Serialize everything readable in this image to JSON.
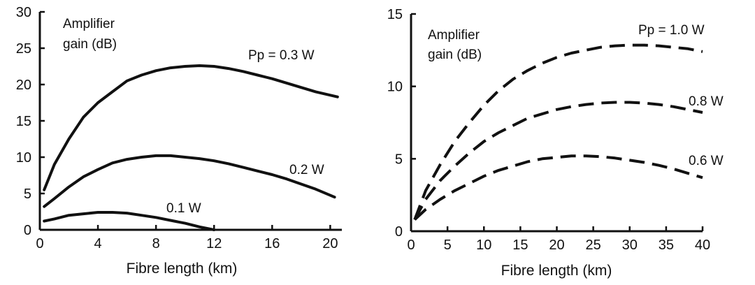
{
  "chart_data": [
    {
      "type": "line",
      "title": "",
      "annotation": "Amplifier gain (dB)",
      "annotation_lines": [
        "Amplifier",
        "gain (dB)"
      ],
      "xlabel": "Fibre length (km)",
      "ylabel": "",
      "xlim": [
        0,
        20.8
      ],
      "ylim": [
        0,
        30
      ],
      "x_ticks": [
        0,
        4,
        8,
        12,
        16,
        20
      ],
      "y_ticks": [
        0,
        5,
        10,
        15,
        20,
        25,
        30
      ],
      "line_style": "solid",
      "series": [
        {
          "name": "Pp = 0.3 W",
          "label": "Pp = 0.3 W",
          "x": [
            0.3,
            1,
            2,
            3,
            4,
            5,
            6,
            7,
            8,
            9,
            10,
            11,
            12,
            13,
            14,
            15,
            16,
            17,
            18,
            19,
            20.5
          ],
          "y": [
            5.5,
            9,
            12.5,
            15.5,
            17.5,
            19,
            20.5,
            21.3,
            21.9,
            22.3,
            22.5,
            22.6,
            22.5,
            22.2,
            21.8,
            21.3,
            20.8,
            20.2,
            19.6,
            19.0,
            18.3
          ]
        },
        {
          "name": "0.2 W",
          "label": "0.2 W",
          "x": [
            0.3,
            1,
            2,
            3,
            4,
            5,
            6,
            7,
            8,
            9,
            10,
            11,
            12,
            13,
            14,
            15,
            16,
            17,
            18,
            19,
            20.3
          ],
          "y": [
            3.2,
            4.3,
            5.9,
            7.3,
            8.3,
            9.2,
            9.7,
            10.0,
            10.2,
            10.2,
            10.0,
            9.8,
            9.5,
            9.1,
            8.6,
            8.1,
            7.6,
            7.0,
            6.3,
            5.6,
            4.5
          ]
        },
        {
          "name": "0.1 W",
          "label": "0.1 W",
          "x": [
            0.3,
            1,
            2,
            3,
            4,
            5,
            6,
            7,
            8,
            9,
            10,
            11,
            12
          ],
          "y": [
            1.2,
            1.5,
            2.0,
            2.2,
            2.4,
            2.4,
            2.3,
            2.0,
            1.7,
            1.3,
            0.9,
            0.4,
            0.0
          ]
        }
      ]
    },
    {
      "type": "line",
      "title": "",
      "annotation": "Amplifier gain (dB)",
      "annotation_lines": [
        "Amplifier",
        "gain (dB)"
      ],
      "xlabel": "Fibre length (km)",
      "ylabel": "",
      "xlim": [
        0,
        40
      ],
      "ylim": [
        0,
        15
      ],
      "x_ticks": [
        0,
        5,
        10,
        15,
        20,
        25,
        30,
        35,
        40
      ],
      "y_ticks": [
        0,
        5,
        10,
        15
      ],
      "line_style": "dashed",
      "series": [
        {
          "name": "Pp = 1.0 W",
          "label": "Pp = 1.0 W",
          "x": [
            0.5,
            2,
            4,
            6,
            8,
            10,
            12,
            14,
            16,
            18,
            20,
            22,
            24,
            26,
            28,
            30,
            32,
            34,
            36,
            38,
            40
          ],
          "y": [
            0.8,
            2.8,
            4.6,
            6.2,
            7.5,
            8.7,
            9.7,
            10.5,
            11.1,
            11.6,
            12.0,
            12.3,
            12.5,
            12.7,
            12.8,
            12.85,
            12.85,
            12.8,
            12.7,
            12.6,
            12.4
          ]
        },
        {
          "name": "0.8 W",
          "label": "0.8 W",
          "x": [
            0.5,
            2,
            4,
            6,
            8,
            10,
            12,
            14,
            16,
            18,
            20,
            22,
            24,
            26,
            28,
            30,
            32,
            34,
            36,
            38,
            40
          ],
          "y": [
            0.8,
            2.2,
            3.5,
            4.5,
            5.4,
            6.2,
            6.8,
            7.3,
            7.8,
            8.1,
            8.4,
            8.6,
            8.75,
            8.85,
            8.9,
            8.9,
            8.85,
            8.75,
            8.6,
            8.4,
            8.2
          ]
        },
        {
          "name": "0.6 W",
          "label": "0.6 W",
          "x": [
            0.5,
            2,
            4,
            6,
            8,
            10,
            12,
            14,
            16,
            18,
            20,
            22,
            24,
            26,
            28,
            30,
            32,
            34,
            36,
            38,
            40
          ],
          "y": [
            0.8,
            1.5,
            2.2,
            2.8,
            3.3,
            3.8,
            4.2,
            4.5,
            4.8,
            5.0,
            5.1,
            5.2,
            5.2,
            5.15,
            5.05,
            4.9,
            4.75,
            4.55,
            4.3,
            4.0,
            3.7
          ]
        }
      ]
    }
  ]
}
